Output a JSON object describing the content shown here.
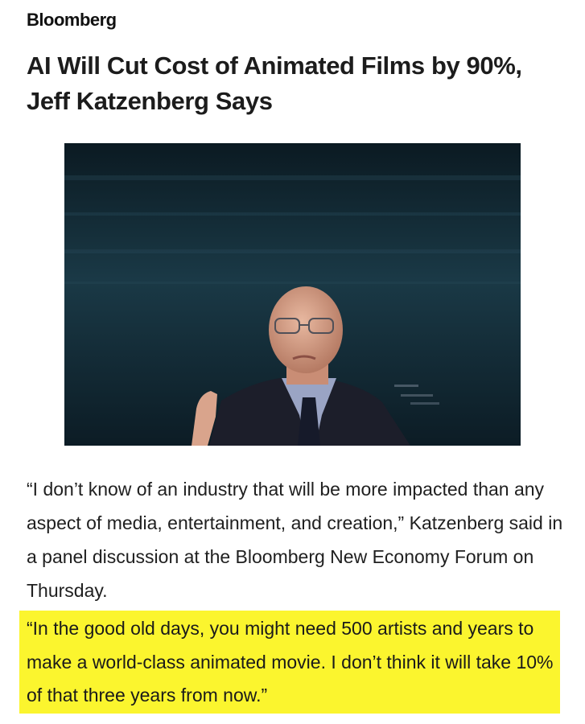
{
  "brand": {
    "name": "Bloomberg"
  },
  "article": {
    "headline": "AI Will Cut Cost of Animated Films by 90%, Jeff Katzenberg Says",
    "photo": {
      "subject": "man-speaking-on-stage"
    },
    "paragraph": "“I don’t know of an industry that will be more impacted than any aspect of media, entertainment, and creation,” Katzenberg said in a panel discussion at the Bloomberg New Economy Forum on Thursday.",
    "highlighted_quote": "“In the good old days, you might need 500 artists and years to make a world-class animated movie. I don’t think it will take 10% of that three years from now.”"
  },
  "colors": {
    "highlight": "#fbf52e",
    "text": "#1a1a1a",
    "photo_background": "#0d1f2a"
  }
}
